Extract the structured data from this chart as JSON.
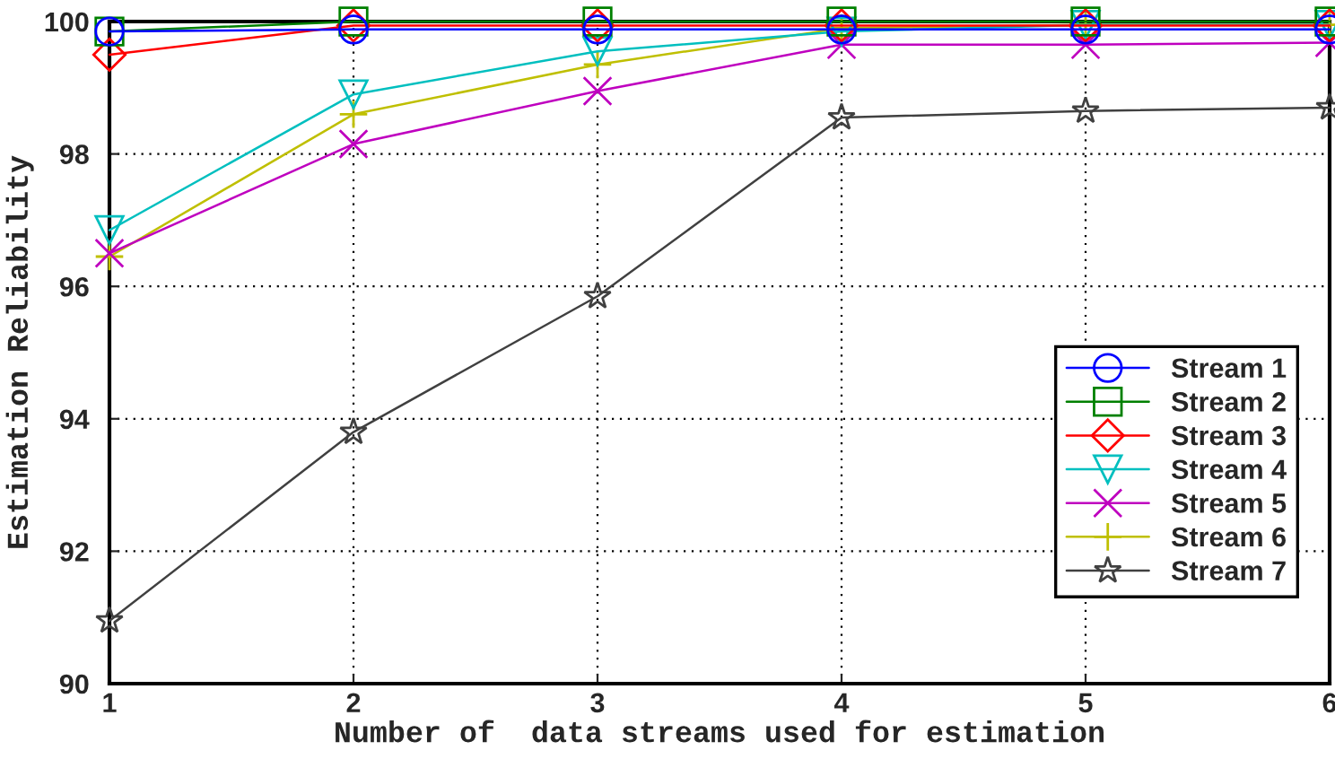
{
  "chart_data": {
    "type": "line",
    "xlabel": "Number of  data streams used for estimation",
    "ylabel": "Estimation Reliability",
    "x": [
      1,
      2,
      3,
      4,
      5,
      6
    ],
    "xlim": [
      1,
      6
    ],
    "xticks": [
      1,
      2,
      3,
      4,
      5,
      6
    ],
    "ylim": [
      90,
      100
    ],
    "yticks": [
      90,
      92,
      94,
      96,
      98,
      100
    ],
    "grid": true,
    "legend": "right",
    "series": [
      {
        "name": "Stream 1",
        "color": "#0000ff",
        "marker": "circle",
        "values": [
          99.85,
          99.88,
          99.88,
          99.88,
          99.88,
          99.88
        ]
      },
      {
        "name": "Stream 2",
        "color": "#008000",
        "marker": "square",
        "values": [
          99.85,
          100,
          100,
          100,
          100,
          100
        ]
      },
      {
        "name": "Stream 3",
        "color": "#ff0000",
        "marker": "diamond",
        "values": [
          99.5,
          99.94,
          99.94,
          99.94,
          99.94,
          99.94
        ]
      },
      {
        "name": "Stream 4",
        "color": "#00bfbf",
        "marker": "triangle",
        "values": [
          96.85,
          98.9,
          99.55,
          99.85,
          99.95,
          99.95
        ]
      },
      {
        "name": "Stream 5",
        "color": "#bf00bf",
        "marker": "cross",
        "values": [
          96.5,
          98.15,
          98.95,
          99.65,
          99.65,
          99.68
        ]
      },
      {
        "name": "Stream 6",
        "color": "#bfbf00",
        "marker": "plus",
        "values": [
          96.45,
          98.6,
          99.35,
          99.9,
          99.95,
          99.95
        ]
      },
      {
        "name": "Stream 7",
        "color": "#404040",
        "marker": "star",
        "values": [
          90.95,
          93.8,
          95.85,
          98.55,
          98.65,
          98.7
        ]
      }
    ]
  }
}
